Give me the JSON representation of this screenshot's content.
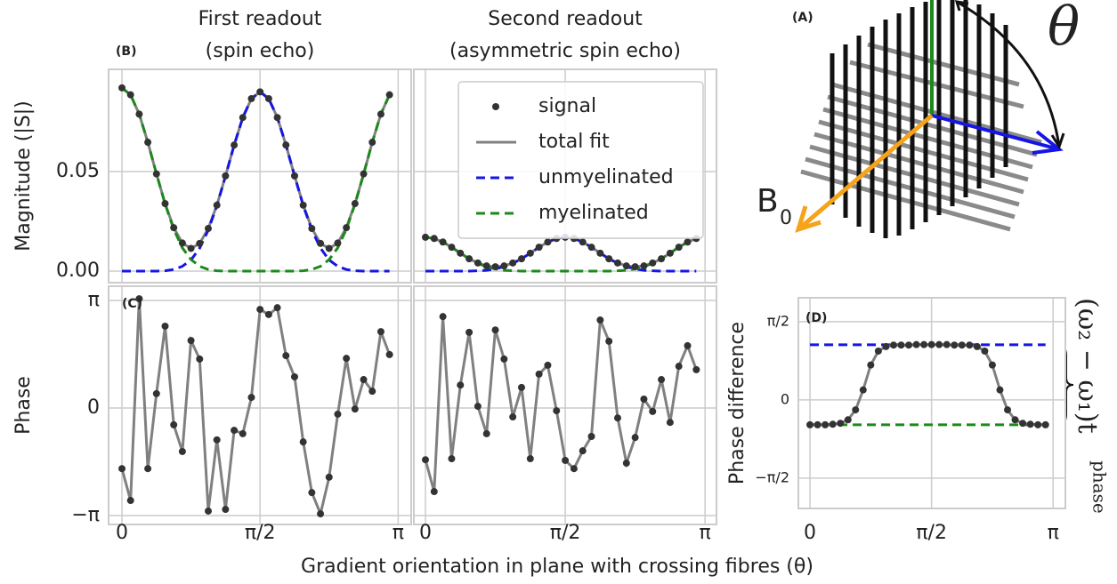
{
  "xlabel": "Gradient orientation in plane with crossing fibres (θ)",
  "diagram": {
    "label": "(A)",
    "angle_label": "θ",
    "field_label": "B",
    "field_subscript": "0"
  },
  "chart_data": [
    {
      "type": "line",
      "title": [
        "First readout",
        "(spin echo)"
      ],
      "panel": "(B)",
      "ylabel": "Magnitude (|S|)",
      "xlim": [
        -0.152,
        3.29
      ],
      "xticks": [
        0,
        1.5708,
        3.1416
      ],
      "ylim": [
        -0.0058,
        0.1013
      ],
      "yticks": [
        {
          "value": 0,
          "label": "0.00"
        },
        {
          "value": 0.05,
          "label": "0.05"
        }
      ],
      "grid": true,
      "x": [
        0,
        0.0982,
        0.1963,
        0.2945,
        0.3927,
        0.4909,
        0.589,
        0.6872,
        0.7854,
        0.8836,
        0.9817,
        1.0799,
        1.1781,
        1.2763,
        1.3744,
        1.4726,
        1.5708,
        1.669,
        1.7671,
        1.8653,
        1.9635,
        2.0617,
        2.1598,
        2.258,
        2.3562,
        2.4544,
        2.5525,
        2.6507,
        2.7489,
        2.8471,
        2.9452,
        3.0434
      ],
      "series": [
        {
          "style": "points",
          "color": "#333333",
          "values": [
            0.092,
            0.0885,
            0.0788,
            0.0647,
            0.0488,
            0.0339,
            0.0218,
            0.0141,
            0.0114,
            0.0139,
            0.0214,
            0.0331,
            0.0478,
            0.0633,
            0.0771,
            0.0866,
            0.09,
            0.0866,
            0.0771,
            0.0633,
            0.0478,
            0.0331,
            0.0214,
            0.0139,
            0.0114,
            0.0141,
            0.0218,
            0.0339,
            0.0488,
            0.0647,
            0.0788,
            0.0885
          ]
        },
        {
          "style": "line",
          "color": "#808080",
          "values": [
            0.092,
            0.0885,
            0.0788,
            0.0647,
            0.0488,
            0.0339,
            0.0218,
            0.0141,
            0.0114,
            0.0139,
            0.0214,
            0.0331,
            0.0478,
            0.0633,
            0.0771,
            0.0866,
            0.09,
            0.0866,
            0.0771,
            0.0633,
            0.0478,
            0.0331,
            0.0214,
            0.0139,
            0.0114,
            0.0141,
            0.0218,
            0.0339,
            0.0488,
            0.0647,
            0.0788,
            0.0885
          ]
        },
        {
          "style": "dashed",
          "color": "#1515e6",
          "values": [
            0,
            0,
            0,
            0,
            0,
            0.0002,
            0.0008,
            0.0024,
            0.0056,
            0.0115,
            0.0206,
            0.0329,
            0.0478,
            0.0633,
            0.0771,
            0.0866,
            0.09,
            0.0866,
            0.0771,
            0.0633,
            0.0478,
            0.0329,
            0.0206,
            0.0115,
            0.0056,
            0.0024,
            0.0008,
            0.0002,
            0,
            0,
            0,
            0
          ]
        },
        {
          "style": "dashed",
          "color": "#1a8a1a",
          "values": [
            0.092,
            0.0885,
            0.0788,
            0.0647,
            0.0488,
            0.0337,
            0.021,
            0.0117,
            0.0058,
            0.0024,
            0.0008,
            0.0002,
            0,
            0,
            0,
            0,
            0,
            0,
            0,
            0,
            0,
            0.0002,
            0.0008,
            0.0024,
            0.0058,
            0.0117,
            0.021,
            0.0337,
            0.0488,
            0.0647,
            0.0788,
            0.0885
          ]
        }
      ]
    },
    {
      "type": "line",
      "title": [
        "Second readout",
        "(asymmetric spin echo)"
      ],
      "xlim": [
        -0.13,
        3.27
      ],
      "xticks": [
        0,
        1.5708,
        3.1416
      ],
      "ylim": [
        -0.0058,
        0.1013
      ],
      "yticks": [
        0,
        0.05
      ],
      "grid": true,
      "legend": "upper right",
      "x": [
        0,
        0.0982,
        0.1963,
        0.2945,
        0.3927,
        0.4909,
        0.589,
        0.6872,
        0.7854,
        0.8836,
        0.9817,
        1.0799,
        1.1781,
        1.2763,
        1.3744,
        1.4726,
        1.5708,
        1.669,
        1.7671,
        1.8653,
        1.9635,
        2.0617,
        2.1598,
        2.258,
        2.3562,
        2.4544,
        2.5525,
        2.6507,
        2.7489,
        2.8471,
        2.9452,
        3.0434
      ],
      "series": [
        {
          "name": "signal",
          "style": "points",
          "color": "#333333",
          "values": [
            0.017,
            0.0164,
            0.0146,
            0.012,
            0.009,
            0.0062,
            0.0041,
            0.0026,
            0.0022,
            0.0026,
            0.0041,
            0.0062,
            0.009,
            0.012,
            0.0146,
            0.0164,
            0.017,
            0.0164,
            0.0146,
            0.012,
            0.009,
            0.0062,
            0.0041,
            0.0026,
            0.0022,
            0.0026,
            0.0041,
            0.0062,
            0.009,
            0.012,
            0.0146,
            0.0164
          ]
        },
        {
          "name": "total fit",
          "style": "line",
          "color": "#808080",
          "values": [
            0.017,
            0.0164,
            0.0146,
            0.012,
            0.009,
            0.0062,
            0.0041,
            0.0026,
            0.0022,
            0.0026,
            0.0041,
            0.0062,
            0.009,
            0.012,
            0.0146,
            0.0164,
            0.017,
            0.0164,
            0.0146,
            0.012,
            0.009,
            0.0062,
            0.0041,
            0.0026,
            0.0022,
            0.0026,
            0.0041,
            0.0062,
            0.009,
            0.012,
            0.0146,
            0.0164
          ]
        },
        {
          "name": "unmyelinated",
          "style": "dashed",
          "color": "#1515e6",
          "values": [
            0,
            0,
            0,
            0,
            0,
            0,
            0.0002,
            0.0004,
            0.0011,
            0.0022,
            0.0039,
            0.0062,
            0.009,
            0.012,
            0.0146,
            0.0164,
            0.017,
            0.0164,
            0.0146,
            0.012,
            0.009,
            0.0062,
            0.0039,
            0.0022,
            0.0011,
            0.0004,
            0.0002,
            0,
            0,
            0,
            0,
            0
          ]
        },
        {
          "name": "myelinated",
          "style": "dashed",
          "color": "#1a8a1a",
          "values": [
            0.017,
            0.0164,
            0.0146,
            0.012,
            0.009,
            0.0062,
            0.0039,
            0.0022,
            0.0011,
            0.0004,
            0.0002,
            0,
            0,
            0,
            0,
            0,
            0,
            0,
            0,
            0,
            0,
            0,
            0.0002,
            0.0004,
            0.0011,
            0.0022,
            0.0039,
            0.0062,
            0.009,
            0.012,
            0.0146,
            0.0164
          ]
        }
      ]
    },
    {
      "type": "line",
      "panel": "(C)",
      "ylabel": "Phase",
      "xlim": [
        -0.152,
        3.29
      ],
      "xticks": [
        {
          "value": 0,
          "label": "0"
        },
        {
          "value": 1.5708,
          "label": "π/2"
        },
        {
          "value": 3.1416,
          "label": "π"
        }
      ],
      "ylim": [
        -3.4,
        3.557
      ],
      "yticks": [
        {
          "value": 3.1416,
          "label": "π"
        },
        0,
        {
          "value": -3.1416,
          "label": "−π"
        }
      ],
      "grid": true,
      "x": [
        0,
        0.0982,
        0.1963,
        0.2945,
        0.3927,
        0.4909,
        0.589,
        0.6872,
        0.7854,
        0.8836,
        0.9817,
        1.0799,
        1.1781,
        1.2763,
        1.3744,
        1.4726,
        1.5708,
        1.669,
        1.7671,
        1.8653,
        1.9635,
        2.0617,
        2.1598,
        2.258,
        2.3562,
        2.4544,
        2.5525,
        2.6507,
        2.7489,
        2.8471,
        2.9452,
        3.0434
      ],
      "series": [
        {
          "style": "line_points",
          "color": "#808080",
          "marker_color": "#333333",
          "values": [
            -1.77,
            -2.7,
            3.19,
            -1.77,
            0.42,
            2.39,
            -0.49,
            -1.27,
            1.97,
            1.43,
            -3.01,
            -0.93,
            -2.96,
            -0.65,
            -0.75,
            0.31,
            2.88,
            2.73,
            2.93,
            1.53,
            0.91,
            -0.99,
            -2.47,
            -3.09,
            -2.02,
            -0.18,
            1.45,
            -0.03,
            0.83,
            0.49,
            2.23,
            1.56
          ]
        }
      ]
    },
    {
      "type": "line",
      "xlim": [
        -0.13,
        3.27
      ],
      "xticks": [
        {
          "value": 0,
          "label": "0"
        },
        {
          "value": 1.5708,
          "label": "π/2"
        },
        {
          "value": 3.1416,
          "label": "π"
        }
      ],
      "ylim": [
        -3.4,
        3.557
      ],
      "yticks": [
        3.1416,
        0,
        -3.1416
      ],
      "grid": true,
      "x": [
        0,
        0.0982,
        0.1963,
        0.2945,
        0.3927,
        0.4909,
        0.589,
        0.6872,
        0.7854,
        0.8836,
        0.9817,
        1.0799,
        1.1781,
        1.2763,
        1.3744,
        1.4726,
        1.5708,
        1.669,
        1.7671,
        1.8653,
        1.9635,
        2.0617,
        2.1598,
        2.258,
        2.3562,
        2.4544,
        2.5525,
        2.6507,
        2.7489,
        2.8471,
        2.9452,
        3.0434
      ],
      "series": [
        {
          "style": "line_points",
          "color": "#808080",
          "marker_color": "#333333",
          "values": [
            -1.51,
            -2.44,
            2.67,
            -1.48,
            0.67,
            2.21,
            0.05,
            -0.75,
            2.28,
            1.43,
            -0.26,
            0.6,
            -1.48,
            0.99,
            1.25,
            -0.08,
            -1.53,
            -1.77,
            -1.25,
            -0.83,
            2.57,
            1.95,
            -0.29,
            -1.61,
            -0.86,
            0.26,
            -0.1,
            0.83,
            -0.42,
            1.22,
            1.82,
            1.12
          ]
        }
      ]
    },
    {
      "type": "line",
      "panel": "(D)",
      "ylabel": "Phase difference",
      "annotation": "(ω₂ − ω₁)t",
      "annotation_subscript": "phase",
      "xlim": [
        -0.15,
        3.3
      ],
      "xticks": [
        {
          "value": 0,
          "label": "0"
        },
        {
          "value": 1.5708,
          "label": "π/2"
        },
        {
          "value": 3.1416,
          "label": "π"
        }
      ],
      "ylim": [
        -2.18,
        2.05
      ],
      "yticks": [
        {
          "value": 1.5708,
          "label": "π/2"
        },
        0,
        {
          "value": -1.5708,
          "label": "−π/2"
        }
      ],
      "grid": true,
      "hlines": [
        {
          "value": 1.107,
          "color": "#1515e6"
        },
        {
          "value": -0.5,
          "color": "#1a8a1a"
        }
      ],
      "x": [
        0,
        0.0982,
        0.1963,
        0.2945,
        0.3927,
        0.4909,
        0.589,
        0.6872,
        0.7854,
        0.8836,
        0.9817,
        1.0799,
        1.1781,
        1.2763,
        1.3744,
        1.4726,
        1.5708,
        1.669,
        1.7671,
        1.8653,
        1.9635,
        2.0617,
        2.1598,
        2.258,
        2.3562,
        2.4544,
        2.5525,
        2.6507,
        2.7489,
        2.8471,
        2.9452,
        3.0434
      ],
      "series": [
        {
          "style": "line_points",
          "color": "#808080",
          "marker_color": "#333333",
          "values": [
            -0.5,
            -0.5,
            -0.5,
            -0.49,
            -0.47,
            -0.4,
            -0.2,
            0.2,
            0.7,
            0.98,
            1.07,
            1.1,
            1.1,
            1.1,
            1.11,
            1.11,
            1.11,
            1.11,
            1.11,
            1.1,
            1.1,
            1.1,
            1.07,
            0.98,
            0.7,
            0.2,
            -0.2,
            -0.4,
            -0.47,
            -0.49,
            -0.5,
            -0.5
          ]
        }
      ]
    }
  ]
}
